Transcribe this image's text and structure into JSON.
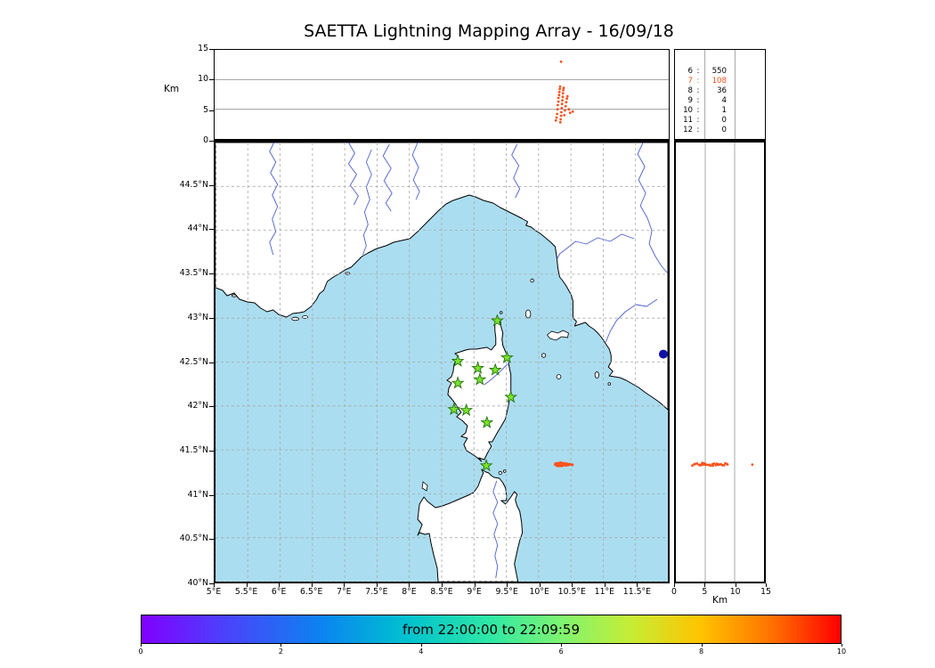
{
  "title": "SAETTA Lightning Mapping Array - 16/09/18",
  "alt_axis": {
    "label": "Km",
    "ticks": [
      0,
      5,
      10,
      15
    ],
    "max": 15,
    "grid": [
      5,
      10
    ]
  },
  "map_axis": {
    "lon_min": 5,
    "lon_max": 12,
    "lat_min": 40,
    "lat_max": 45,
    "lon_tick_values": [
      5,
      5.5,
      6,
      6.5,
      7,
      7.5,
      8,
      8.5,
      9,
      9.5,
      10,
      10.5,
      11,
      11.5
    ],
    "lon_tick_labels": [
      "5°E",
      "5.5°E",
      "6°E",
      "6.5°E",
      "7°E",
      "7.5°E",
      "8°E",
      "8.5°E",
      "9°E",
      "9.5°E",
      "10°E",
      "10.5°E",
      "11°E",
      "11.5°E"
    ],
    "lat_tick_values": [
      40,
      40.5,
      41,
      41.5,
      42,
      42.5,
      43,
      43.5,
      44,
      44.5
    ],
    "lat_tick_labels": [
      "40°N",
      "40.5°N",
      "41°N",
      "41.5°N",
      "42°N",
      "42.5°N",
      "43°N",
      "43.5°N",
      "44°N",
      "44.5°N"
    ]
  },
  "station_counts": {
    "rows": [
      {
        "stations": "6",
        "sep": ":",
        "sources": "550",
        "highlight": false
      },
      {
        "stations": "7",
        "sep": ":",
        "sources": "108",
        "highlight": true
      },
      {
        "stations": "8",
        "sep": ":",
        "sources": "36",
        "highlight": false
      },
      {
        "stations": "9",
        "sep": ":",
        "sources": "4",
        "highlight": false
      },
      {
        "stations": "10",
        "sep": ":",
        "sources": "1",
        "highlight": false
      },
      {
        "stations": "11",
        "sep": ":",
        "sources": "0",
        "highlight": false
      },
      {
        "stations": "12",
        "sep": ":",
        "sources": "0",
        "highlight": false
      }
    ]
  },
  "colorbar": {
    "label": "from 22:00:00 to 22:09:59",
    "tick_values": [
      0,
      2,
      4,
      6,
      8,
      10
    ],
    "tick_labels": [
      "0",
      "2",
      "4",
      "6",
      "8",
      "10"
    ],
    "max": 10,
    "gradient": [
      "#8000ff 0%",
      "#4b42fb 12%",
      "#0a85f0 26%",
      "#00c2cf 38%",
      "#2fe8a5 50%",
      "#7ef470 60%",
      "#c6ed35 70%",
      "#ffc400 80%",
      "#ff7300 90%",
      "#ff0000 100%"
    ]
  },
  "colors": {
    "sea": "#abddf0",
    "river": "#4c5fd0",
    "lightning": "#f9531e",
    "station": "#7be32b",
    "station_edge": "#20700f",
    "lake": "#1111aa",
    "map_grid": "#a8a8a8",
    "panel_grid": "#909090",
    "highlight": "#f9531e"
  },
  "chart_data": {
    "type": "scatter",
    "title": "SAETTA Lightning Mapping Array - 16/09/18",
    "time_window": {
      "from": "22:00:00",
      "to": "22:09:59"
    },
    "axes": {
      "longitude_deg_E": [
        5,
        12
      ],
      "latitude_deg_N": [
        40,
        45
      ],
      "altitude_km": [
        0,
        15
      ],
      "colorbar_minutes": [
        0,
        10
      ]
    },
    "station_count_histogram": {
      "6": 550,
      "7": 108,
      "8": 36,
      "9": 4,
      "10": 1,
      "11": 0,
      "12": 0
    },
    "stations_lonlat": [
      [
        9.36,
        42.97
      ],
      [
        8.75,
        42.51
      ],
      [
        9.06,
        42.43
      ],
      [
        9.33,
        42.41
      ],
      [
        9.51,
        42.55
      ],
      [
        8.75,
        42.26
      ],
      [
        9.09,
        42.3
      ],
      [
        9.57,
        42.1
      ],
      [
        8.69,
        41.96
      ],
      [
        8.88,
        41.95
      ],
      [
        9.2,
        41.81
      ],
      [
        9.19,
        41.32
      ]
    ],
    "sources_lon_lat_alt": [
      [
        10.26,
        41.335,
        3.1
      ],
      [
        10.27,
        41.345,
        3.6
      ],
      [
        10.28,
        41.325,
        4.2
      ],
      [
        10.285,
        41.34,
        5.0
      ],
      [
        10.29,
        41.33,
        5.7
      ],
      [
        10.3,
        41.318,
        6.3
      ],
      [
        10.3,
        41.342,
        6.9
      ],
      [
        10.31,
        41.333,
        7.4
      ],
      [
        10.315,
        41.326,
        7.9
      ],
      [
        10.32,
        41.348,
        8.4
      ],
      [
        10.325,
        41.334,
        8.8
      ],
      [
        10.33,
        41.322,
        2.8
      ],
      [
        10.335,
        41.34,
        3.3
      ],
      [
        10.34,
        41.33,
        3.9
      ],
      [
        10.345,
        41.352,
        4.5
      ],
      [
        10.35,
        41.331,
        5.2
      ],
      [
        10.355,
        41.319,
        5.9
      ],
      [
        10.36,
        41.344,
        6.5
      ],
      [
        10.365,
        41.33,
        7.1
      ],
      [
        10.37,
        41.337,
        7.7
      ],
      [
        10.375,
        41.325,
        8.2
      ],
      [
        10.38,
        41.341,
        8.6
      ],
      [
        10.39,
        41.33,
        4.0
      ],
      [
        10.4,
        41.346,
        4.8
      ],
      [
        10.41,
        41.329,
        5.5
      ],
      [
        10.42,
        41.338,
        6.2
      ],
      [
        10.43,
        41.327,
        6.8
      ],
      [
        10.44,
        41.339,
        7.2
      ],
      [
        10.46,
        41.331,
        5.0
      ],
      [
        10.48,
        41.336,
        4.4
      ],
      [
        10.52,
        41.33,
        4.6
      ],
      [
        10.34,
        41.333,
        13.0
      ]
    ],
    "lake_lonlat": [
      11.93,
      42.59
    ]
  }
}
